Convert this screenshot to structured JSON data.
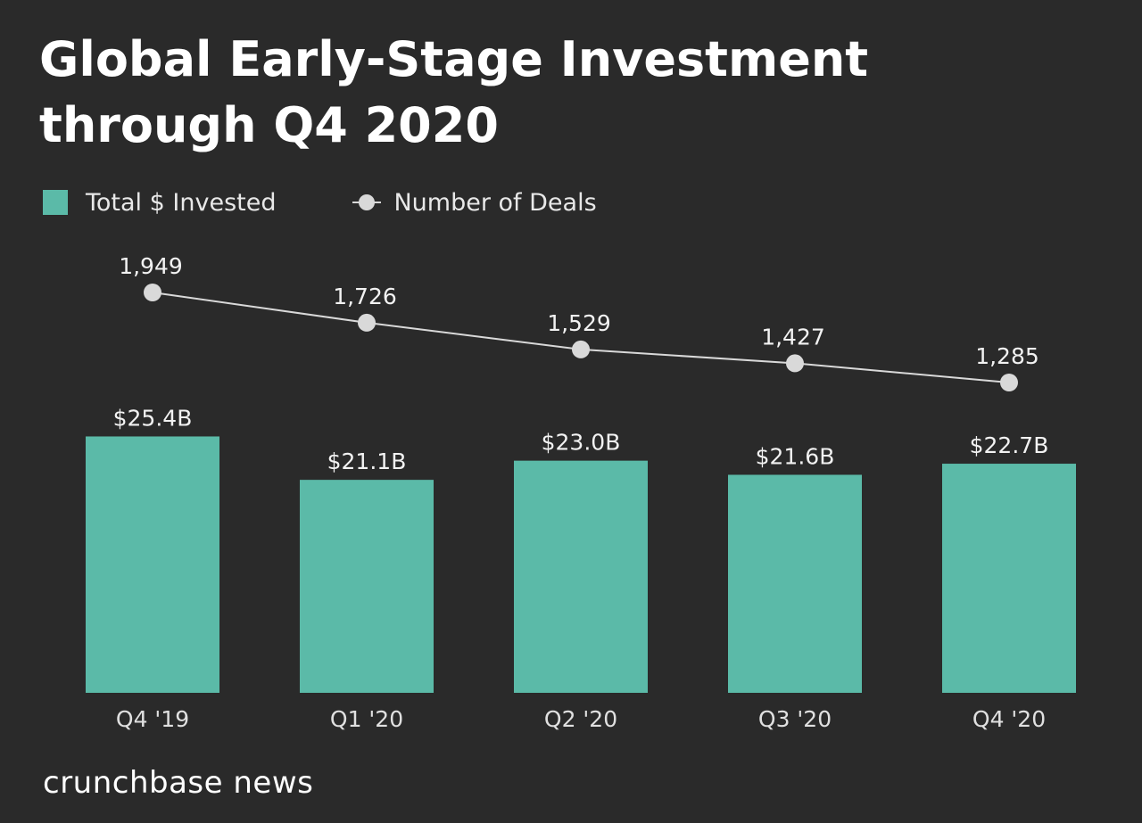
{
  "chart_data": {
    "type": "bar",
    "title": "Global Early-Stage Investment through Q4 2020",
    "categories": [
      "Q4 '19",
      "Q1 '20",
      "Q2 '20",
      "Q3 '20",
      "Q4 '20"
    ],
    "series": [
      {
        "name": "Total $ Invested",
        "type": "bar",
        "values": [
          25.4,
          21.1,
          23.0,
          21.6,
          22.7
        ],
        "labels": [
          "$25.4B",
          "$21.1B",
          "$23.0B",
          "$21.6B",
          "$22.7B"
        ],
        "color": "#5bbaa8"
      },
      {
        "name": "Number of Deals",
        "type": "line",
        "values": [
          1949,
          1726,
          1529,
          1427,
          1285
        ],
        "labels": [
          "1,949",
          "1,726",
          "1,529",
          "1,427",
          "1,285"
        ],
        "color": "#d9d9d9"
      }
    ],
    "xlabel": "",
    "ylabel": "",
    "legend_position": "top-left",
    "grid": false
  },
  "legend": {
    "bar_label": "Total $ Invested",
    "line_label": "Number of Deals"
  },
  "brand": "crunchbase news",
  "colors": {
    "background": "#2a2a2a",
    "bar": "#5bbaa8",
    "line": "#d9d9d9",
    "text": "#ffffff"
  }
}
